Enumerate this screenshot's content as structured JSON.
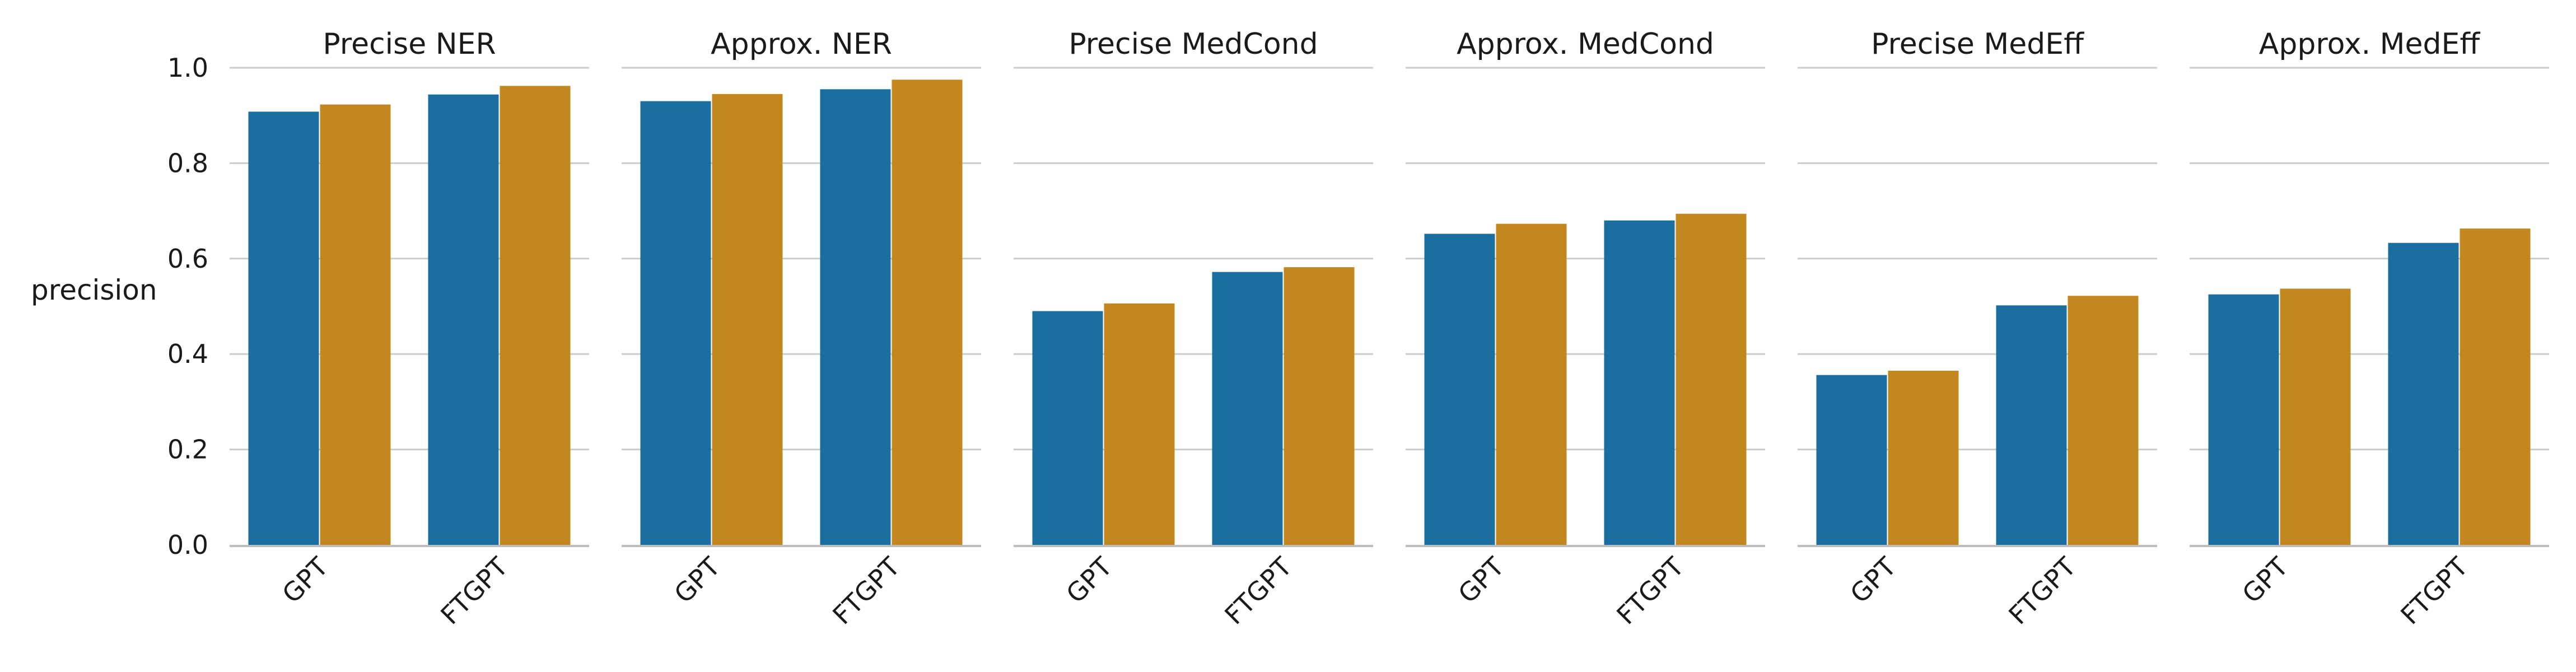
{
  "chart_data": {
    "type": "bar",
    "ylabel": "precision",
    "ylim": [
      0,
      1.0
    ],
    "yticks": [
      "0.0",
      "0.2",
      "0.4",
      "0.6",
      "0.8",
      "1.0"
    ],
    "grid": true,
    "legend": "none",
    "colors": [
      "#1a6fa0",
      "#c3871f"
    ],
    "categories": [
      "GPT",
      "FTGPT"
    ],
    "panels": [
      {
        "title": "Precise NER",
        "series": [
          {
            "values": [
              0.908,
              0.944
            ]
          },
          {
            "values": [
              0.923,
              0.962
            ]
          }
        ]
      },
      {
        "title": "Approx. NER",
        "series": [
          {
            "values": [
              0.93,
              0.955
            ]
          },
          {
            "values": [
              0.945,
              0.975
            ]
          }
        ]
      },
      {
        "title": "Precise MedCond",
        "series": [
          {
            "values": [
              0.49,
              0.572
            ]
          },
          {
            "values": [
              0.506,
              0.582
            ]
          }
        ]
      },
      {
        "title": "Approx. MedCond",
        "series": [
          {
            "values": [
              0.652,
              0.68
            ]
          },
          {
            "values": [
              0.673,
              0.694
            ]
          }
        ]
      },
      {
        "title": "Precise MedEff",
        "series": [
          {
            "values": [
              0.356,
              0.502
            ]
          },
          {
            "values": [
              0.365,
              0.522
            ]
          }
        ]
      },
      {
        "title": "Approx. MedEff",
        "series": [
          {
            "values": [
              0.525,
              0.633
            ]
          },
          {
            "values": [
              0.537,
              0.663
            ]
          }
        ]
      }
    ]
  }
}
